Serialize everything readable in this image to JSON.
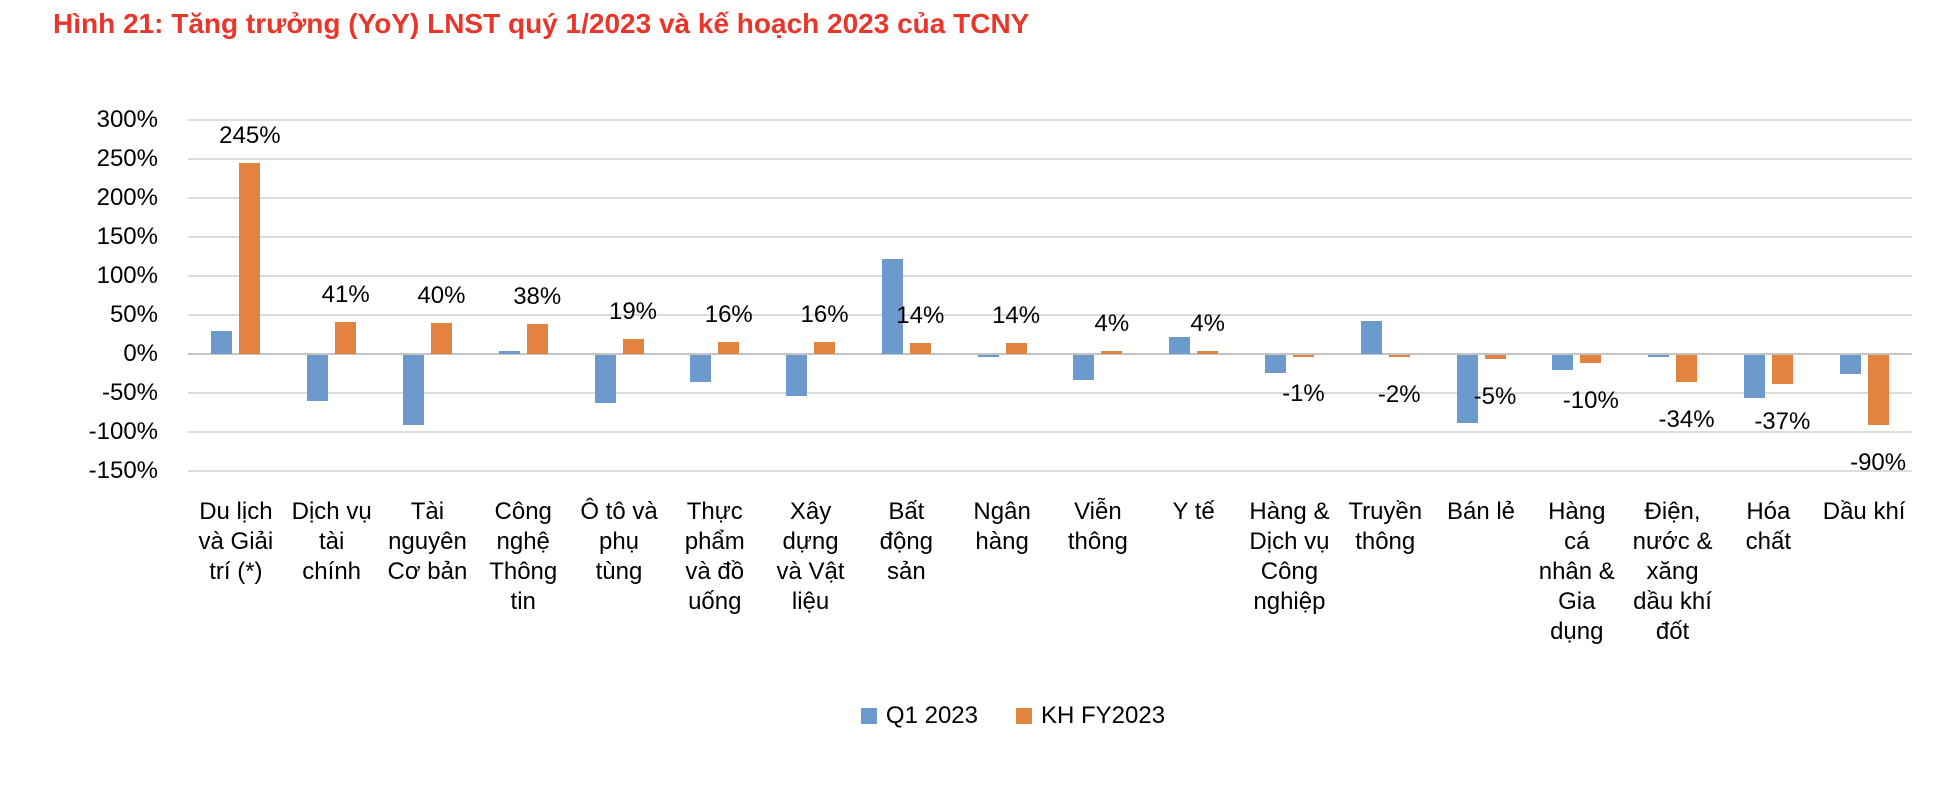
{
  "title": "Hình 21: Tăng trưởng (YoY) LNST quý 1/2023 và kế hoạch 2023 của TCNY",
  "colors": {
    "title": "#E8362A",
    "q1_series": "#6D9ACD",
    "kh_series": "#E2833F",
    "gridline": "#DCDCDC",
    "zero_line": "#C4C4C4",
    "text": "#000000"
  },
  "chart_data": {
    "type": "bar",
    "title": "Tăng trưởng (YoY) LNST quý 1/2023 và kế hoạch 2023 của TCNY",
    "xlabel": "",
    "ylabel": "",
    "categories": [
      "Du lịch và Giải trí (*)",
      "Dịch vụ tài chính",
      "Tài nguyên Cơ bản",
      "Công nghệ Thông tin",
      "Ô tô và phụ tùng",
      "Thực phẩm và đồ uống",
      "Xây dựng và Vật liệu",
      "Bất động sản",
      "Ngân hàng",
      "Viễn thông",
      "Y tế",
      "Hàng & Dịch vụ Công nghiệp",
      "Truyền thông",
      "Bán lẻ",
      "Hàng cá nhân & Gia dụng",
      "Điện, nước & xăng dầu khí đốt",
      "Hóa chất",
      "Dầu khí"
    ],
    "categories_display": [
      "Du lịch\nvà Giải\ntrí (*)",
      "Dịch vụ\ntài\nchính",
      "Tài\nnguyên\nCơ bản",
      "Công\nnghệ\nThông\ntin",
      "Ô tô và\nphụ\ntùng",
      "Thực\nphẩm\nvà đồ\nuống",
      "Xây\ndựng\nvà Vật\nliệu",
      "Bất\nđộng\nsản",
      "Ngân\nhàng",
      "Viễn\nthông",
      "Y tế",
      "Hàng &\nDịch vụ\nCông\nnghiệp",
      "Truyền\nthông",
      "Bán lẻ",
      "Hàng\ncá\nnhân &\nGia\ndụng",
      "Điện,\nnước &\nxăng\ndầu khí\nđốt",
      "Hóa\nchất",
      "Dầu khí"
    ],
    "series": [
      {
        "name": "Q1 2023",
        "color": "#6D9ACD",
        "values": [
          30,
          -59,
          -90,
          4,
          -61,
          -34,
          -52,
          122,
          -2,
          -32,
          22,
          -23,
          42,
          -87,
          -19,
          -2,
          -55,
          -24
        ]
      },
      {
        "name": "KH FY2023",
        "color": "#E2833F",
        "values": [
          245,
          41,
          40,
          38,
          19,
          16,
          16,
          14,
          14,
          4,
          4,
          -1,
          -2,
          -5,
          -10,
          -34,
          -37,
          -90
        ],
        "data_labels": [
          "245%",
          "41%",
          "40%",
          "38%",
          "19%",
          "16%",
          "16%",
          "14%",
          "14%",
          "4%",
          "4%",
          "-1%",
          "-2%",
          "-5%",
          "-10%",
          "-34%",
          "-37%",
          "-90%"
        ]
      }
    ],
    "y_axis": {
      "ticks": [
        "300%",
        "250%",
        "200%",
        "150%",
        "100%",
        "50%",
        "0%",
        "-50%",
        "-100%",
        "-150%"
      ],
      "tick_values": [
        300,
        250,
        200,
        150,
        100,
        50,
        0,
        -50,
        -100,
        -150
      ],
      "ylim": [
        -150,
        300
      ],
      "grid": true
    },
    "legend_position": "bottom"
  }
}
